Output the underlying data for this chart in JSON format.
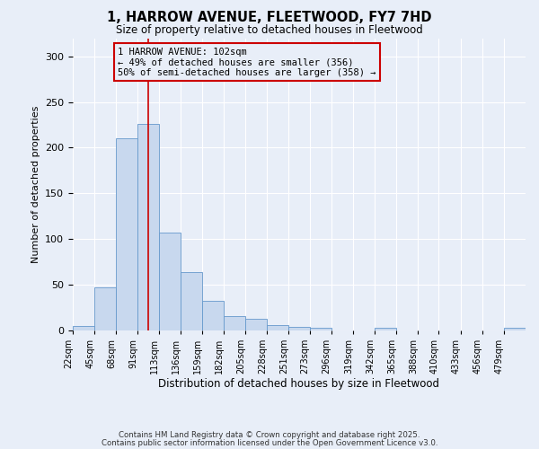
{
  "title1": "1, HARROW AVENUE, FLEETWOOD, FY7 7HD",
  "title2": "Size of property relative to detached houses in Fleetwood",
  "xlabel": "Distribution of detached houses by size in Fleetwood",
  "ylabel": "Number of detached properties",
  "bin_edges": [
    22,
    45,
    68,
    91,
    113,
    136,
    159,
    182,
    205,
    228,
    251,
    273,
    296,
    319,
    342,
    365,
    388,
    410,
    433,
    456,
    479,
    502
  ],
  "bar_heights": [
    4,
    47,
    210,
    226,
    107,
    64,
    32,
    15,
    12,
    5,
    3,
    2,
    0,
    0,
    2,
    0,
    0,
    0,
    0,
    0,
    2
  ],
  "bar_color": "#c8d8ee",
  "bar_edge_color": "#6699cc",
  "vline_x": 102,
  "vline_color": "#cc0000",
  "annotation_text": "1 HARROW AVENUE: 102sqm\n← 49% of detached houses are smaller (356)\n50% of semi-detached houses are larger (358) →",
  "annotation_box_color": "#cc0000",
  "background_color": "#e8eef8",
  "grid_color": "#ffffff",
  "ylim": [
    0,
    320
  ],
  "yticks": [
    0,
    50,
    100,
    150,
    200,
    250,
    300
  ],
  "footer1": "Contains HM Land Registry data © Crown copyright and database right 2025.",
  "footer2": "Contains public sector information licensed under the Open Government Licence v3.0."
}
